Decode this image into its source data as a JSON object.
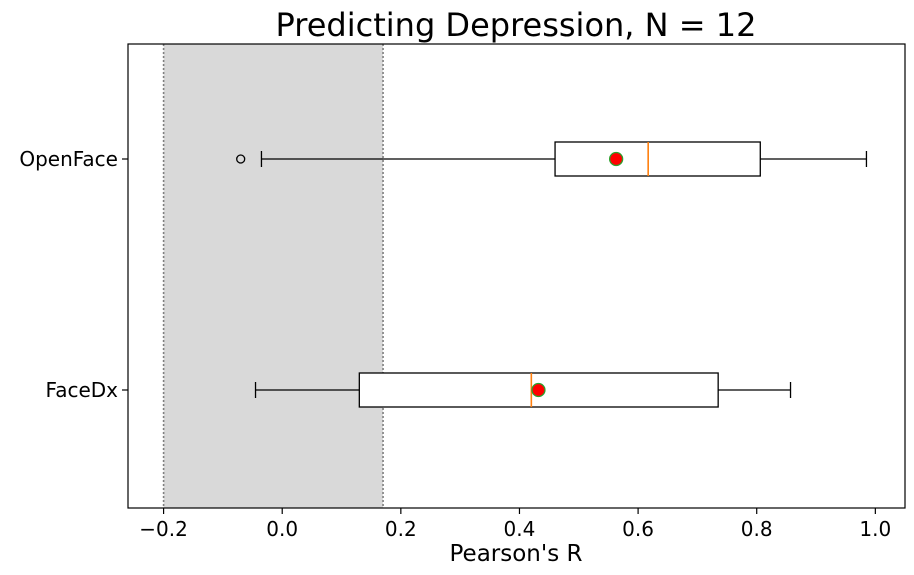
{
  "chart_data": {
    "type": "boxplot",
    "orientation": "horizontal",
    "title": "Predicting Depression, N = 12",
    "xlabel": "Pearson's R",
    "ylabel": "",
    "xlim": [
      -0.26,
      1.05
    ],
    "xticks": [
      -0.2,
      0.0,
      0.2,
      0.4,
      0.6,
      0.8,
      1.0
    ],
    "xtick_labels": [
      "−0.2",
      "0.0",
      "0.2",
      "0.4",
      "0.6",
      "0.8",
      "1.0"
    ],
    "grid": false,
    "shaded_region": {
      "from": -0.2,
      "to": 0.17,
      "color": "#d9d9d9"
    },
    "categories": [
      "OpenFace",
      "FaceDx"
    ],
    "series": [
      {
        "category": "OpenFace",
        "whisker_low": -0.035,
        "q1": 0.46,
        "median": 0.617,
        "q3": 0.806,
        "whisker_high": 0.985,
        "mean": 0.563,
        "outliers": [
          -0.07
        ]
      },
      {
        "category": "FaceDx",
        "whisker_low": -0.045,
        "q1": 0.13,
        "median": 0.42,
        "q3": 0.735,
        "whisker_high": 0.857,
        "mean": 0.432,
        "outliers": []
      }
    ],
    "colors": {
      "box": "#000000",
      "median": "#ff7f0e",
      "mean_fill": "#ff0000",
      "mean_edge": "#2ca02c",
      "shade": "#d9d9d9",
      "boundary_line": "#7f7f7f"
    }
  }
}
